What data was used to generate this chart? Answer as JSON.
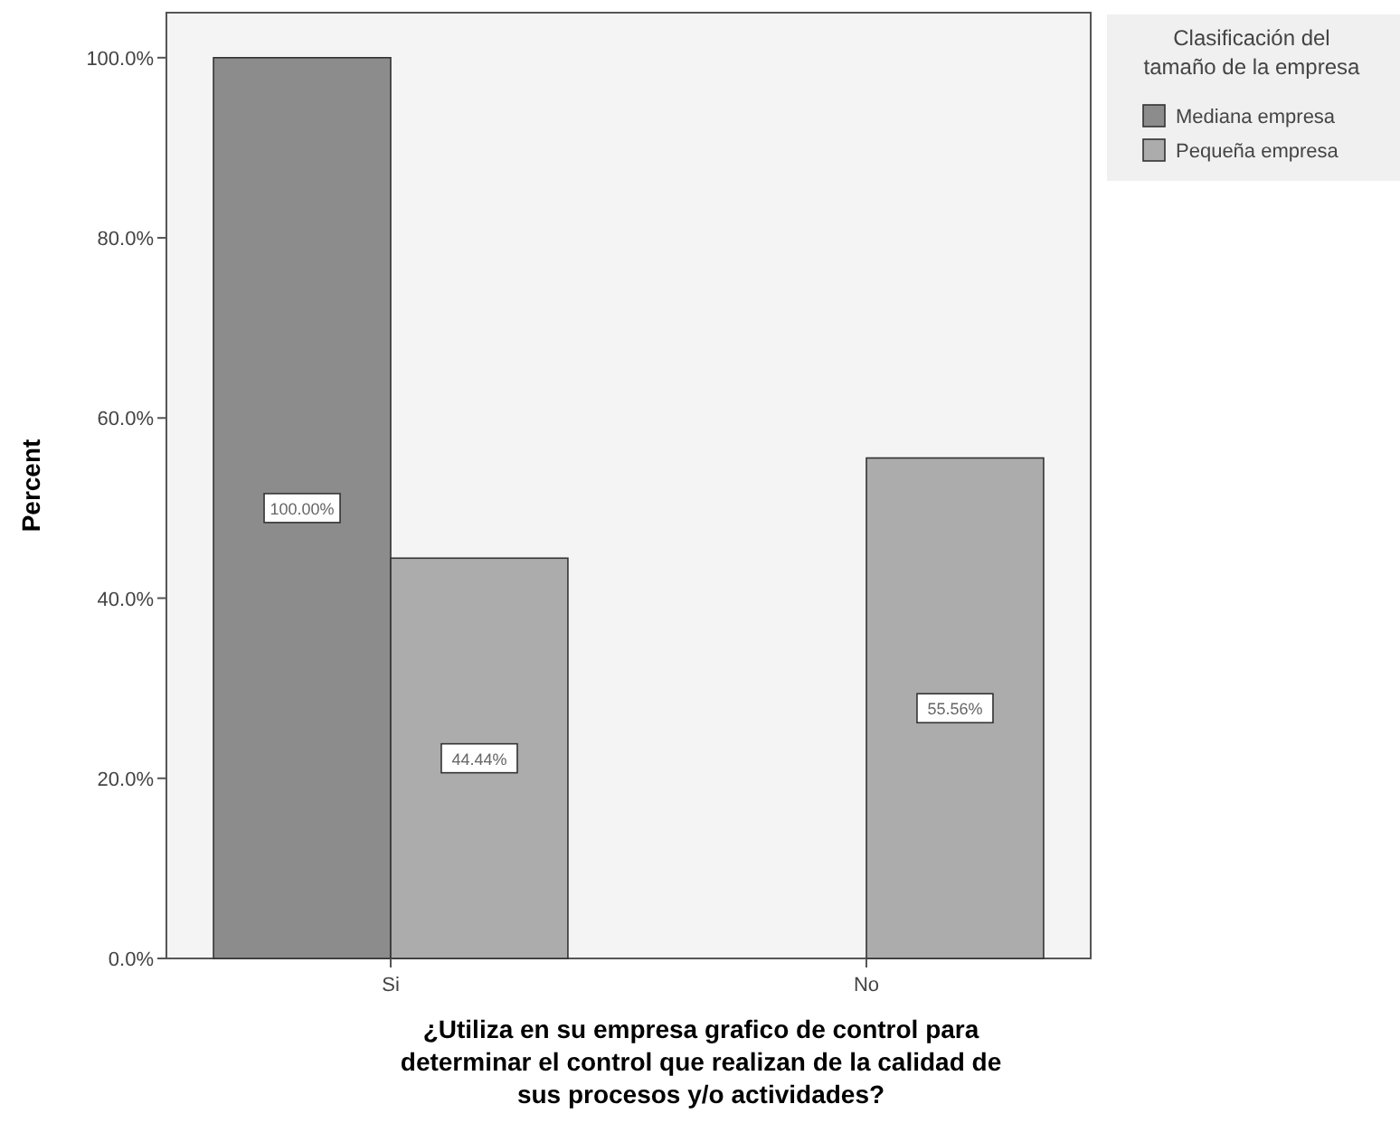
{
  "chart_data": {
    "type": "bar",
    "xlabel": "¿Utiliza en su empresa grafico de control para determinar el control que realizan de la calidad de sus procesos y/o actividades?",
    "ylabel": "Percent",
    "legend_title": "Clasificación del tamaño de la empresa",
    "categories": [
      "Si",
      "No"
    ],
    "series": [
      {
        "name": "Mediana empresa",
        "color": "#8c8c8c",
        "values": [
          100,
          0
        ],
        "value_labels": [
          "100.00%",
          null
        ]
      },
      {
        "name": "Pequeña empresa",
        "color": "#acacac",
        "values": [
          44.44,
          55.56
        ],
        "value_labels": [
          "44.44%",
          "55.56%"
        ]
      }
    ],
    "ylim": [
      0,
      105
    ],
    "yticks": [
      {
        "value": 0,
        "label": "0.0%"
      },
      {
        "value": 20,
        "label": "20.0%"
      },
      {
        "value": 40,
        "label": "40.0%"
      },
      {
        "value": 60,
        "label": "60.0%"
      },
      {
        "value": 80,
        "label": "80.0%"
      },
      {
        "value": 100,
        "label": "100.0%"
      }
    ],
    "grid": false,
    "legend": "top right"
  }
}
